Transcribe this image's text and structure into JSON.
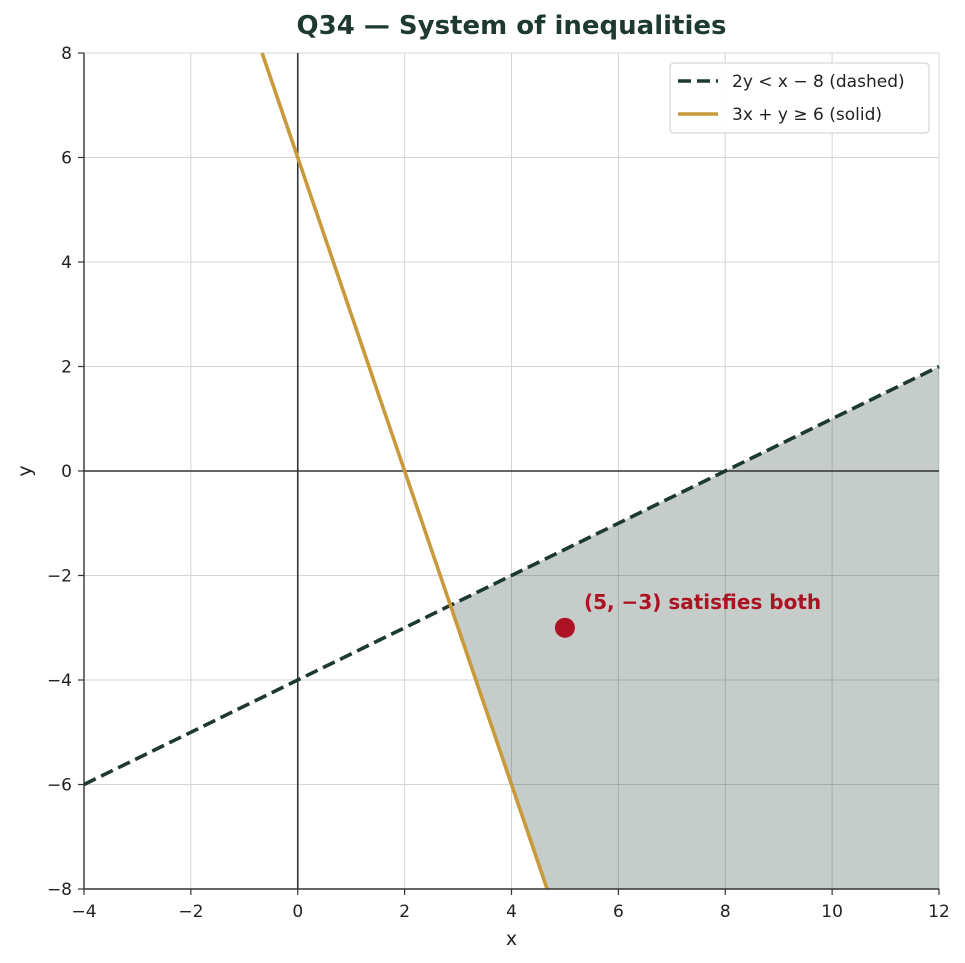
{
  "chart_data": {
    "type": "line",
    "title": "Q34 — System of inequalities",
    "xlabel": "x",
    "ylabel": "y",
    "xlim": [
      -4,
      12
    ],
    "ylim": [
      -8,
      8
    ],
    "xticks": [
      -4,
      -2,
      0,
      2,
      4,
      6,
      8,
      10,
      12
    ],
    "yticks": [
      -8,
      -6,
      -4,
      -2,
      0,
      2,
      4,
      6,
      8
    ],
    "x_tick_labels": [
      "−4",
      "−2",
      "0",
      "2",
      "4",
      "6",
      "8",
      "10",
      "12"
    ],
    "y_tick_labels": [
      "−8",
      "−6",
      "−4",
      "−2",
      "0",
      "2",
      "4",
      "6",
      "8"
    ],
    "grid": true,
    "legend_position": "top-right",
    "series": [
      {
        "name": "2y < x − 8 (dashed)",
        "style": "dashed",
        "color": "#1e3a2f",
        "x": [
          -4,
          12
        ],
        "y": [
          -6,
          2
        ]
      },
      {
        "name": "3x + y ≥ 6 (solid)",
        "style": "solid",
        "color": "#c99a3b",
        "x": [
          -0.667,
          4.667
        ],
        "y": [
          8,
          -8
        ]
      }
    ],
    "shaded_region": {
      "color": "#1e3a2f",
      "opacity": 0.26,
      "polygon": [
        [
          2.857,
          -2.571
        ],
        [
          12,
          2
        ],
        [
          12,
          -8
        ],
        [
          4.667,
          -8
        ]
      ]
    },
    "point": {
      "x": 5,
      "y": -3,
      "color": "#ac1224",
      "label": "(5, −3) satisfies both"
    },
    "colors": {
      "title": "#1e3a2f",
      "annotation": "#ac1224",
      "grid": "#d4d4d4",
      "axis": "#333333"
    }
  }
}
